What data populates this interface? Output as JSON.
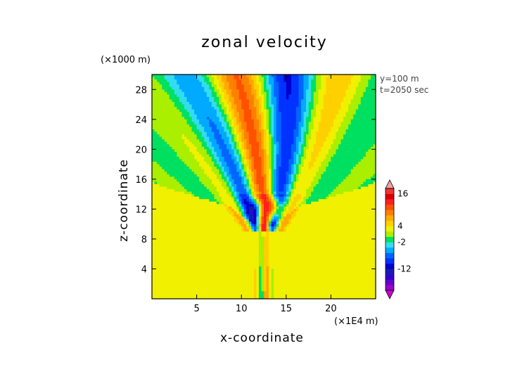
{
  "chart_data": {
    "type": "heatmap",
    "title": "zonal velocity",
    "xlabel": "x-coordinate",
    "ylabel": "z-coordinate",
    "x_unit": "(×1E4 m)",
    "y_unit": "(×1000 m)",
    "annotations": [
      "y=100 m",
      "t=2050 sec"
    ],
    "xlim": [
      0,
      25
    ],
    "ylim": [
      0,
      30
    ],
    "x_ticks": [
      5,
      10,
      15,
      20
    ],
    "y_ticks": [
      4,
      8,
      12,
      16,
      20,
      24,
      28
    ],
    "x_tick_labels": [
      "5",
      "10",
      "15",
      "20"
    ],
    "y_tick_labels": [
      "4",
      "8",
      "12",
      "16",
      "20",
      "24",
      "28"
    ],
    "colorbar": {
      "levels": [
        -20,
        -18,
        -16,
        -14,
        -12,
        -10,
        -8,
        -6,
        -4,
        -2,
        0,
        2,
        4,
        6,
        8,
        10,
        12,
        14,
        16,
        18
      ],
      "colors": [
        "#cc00cc",
        "#9900cc",
        "#6600cc",
        "#3300cc",
        "#1a1ab3",
        "#0000cc",
        "#0033ff",
        "#0066ff",
        "#00aaff",
        "#33ddee",
        "#00e060",
        "#aaee00",
        "#f0f000",
        "#ffd000",
        "#ffaa00",
        "#ff8000",
        "#ff5000",
        "#ff2020",
        "#dd0000",
        "#ee3333",
        "#f0a0a0"
      ],
      "tick_labels": [
        {
          "value": 16,
          "label": "16"
        },
        {
          "value": 4,
          "label": "4"
        },
        {
          "value": -2,
          "label": "-2"
        },
        {
          "value": -12,
          "label": "-12"
        }
      ]
    },
    "background_value_upper": 0,
    "background_value_lower": 3,
    "features": [
      {
        "kind": "ridge_boundary",
        "note": "yellow region below, green above"
      },
      {
        "kind": "plume",
        "center_x": 12.5,
        "description": "alternating positive/negative velocity bands rising from z≈10 to top"
      }
    ]
  }
}
